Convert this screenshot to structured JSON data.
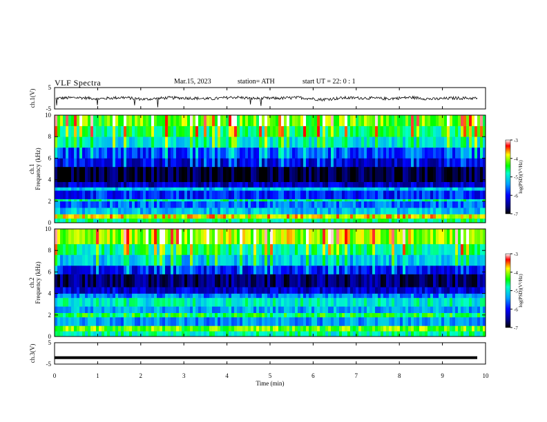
{
  "header": {
    "title": "VLF  Spectra",
    "date": "Mar.15, 2023",
    "station": "station= ATH",
    "start_ut": "start  UT  =   22: 0  : 1"
  },
  "chart_data": [
    {
      "type": "line",
      "panel": "ch1-waveform",
      "ylabel": "ch.1(V)",
      "ylim": [
        -5,
        5
      ],
      "y_ticks": [
        "5",
        "-5"
      ],
      "x_range": [
        0,
        10
      ],
      "series": [
        {
          "values": [
            0.0,
            0.3,
            -0.2,
            0.4,
            -0.5,
            0.2,
            0.1,
            -0.3,
            0.5,
            -0.1,
            0.0,
            0.3,
            -0.6,
            0.2,
            0.1,
            -0.2,
            0.4,
            -0.4,
            0.1,
            0.0
          ]
        }
      ]
    },
    {
      "type": "heatmap",
      "panel": "ch1-spectrogram",
      "ylabel": "ch.1\nFrequency  (kHz)",
      "y_ticks": [
        "0",
        "2",
        "4",
        "6",
        "8",
        "10"
      ],
      "ylim": [
        0,
        10
      ],
      "x_range": [
        0,
        10
      ],
      "colorbar": {
        "label": "log(PSD)(V²/Hz)",
        "ticks": [
          "-3",
          "-4",
          "-5",
          "-6",
          "-7"
        ],
        "range": [
          -7,
          -3
        ]
      },
      "bands_khz_logpsd": [
        [
          0.0,
          0.4,
          -4.6
        ],
        [
          0.4,
          0.8,
          -3.8
        ],
        [
          0.8,
          1.4,
          -5.2
        ],
        [
          1.4,
          2.0,
          -5.6
        ],
        [
          2.0,
          2.2,
          -4.8
        ],
        [
          2.2,
          3.0,
          -5.9
        ],
        [
          3.0,
          3.3,
          -5.2
        ],
        [
          3.3,
          3.8,
          -6.3
        ],
        [
          3.8,
          5.2,
          -6.8
        ],
        [
          5.2,
          6.0,
          -6.2
        ],
        [
          6.0,
          7.0,
          -5.8
        ],
        [
          7.0,
          8.0,
          -5.0
        ],
        [
          8.0,
          9.0,
          -4.6
        ],
        [
          9.0,
          10.0,
          -4.2
        ]
      ]
    },
    {
      "type": "heatmap",
      "panel": "ch2-spectrogram",
      "ylabel": "ch.2\nFrequency  (kHz)",
      "y_ticks": [
        "0",
        "2",
        "4",
        "6",
        "8",
        "10"
      ],
      "ylim": [
        0,
        10
      ],
      "x_range": [
        0,
        10
      ],
      "colorbar": {
        "label": "log(PSD)(V²/Hz)",
        "ticks": [
          "-3",
          "-4",
          "-5",
          "-6",
          "-7"
        ],
        "range": [
          -7,
          -3
        ]
      },
      "bands_khz_logpsd": [
        [
          0.0,
          0.5,
          -4.8
        ],
        [
          0.5,
          1.0,
          -4.2
        ],
        [
          1.0,
          1.8,
          -5.4
        ],
        [
          1.8,
          2.2,
          -4.5
        ],
        [
          2.2,
          2.8,
          -5.3
        ],
        [
          2.8,
          3.6,
          -4.9
        ],
        [
          3.6,
          4.0,
          -5.5
        ],
        [
          4.0,
          4.6,
          -6.2
        ],
        [
          4.6,
          5.8,
          -6.6
        ],
        [
          5.8,
          6.6,
          -6.0
        ],
        [
          6.6,
          7.6,
          -5.2
        ],
        [
          7.6,
          8.6,
          -4.7
        ],
        [
          8.6,
          10.0,
          -4.0
        ]
      ]
    },
    {
      "type": "line",
      "panel": "ch3-waveform",
      "ylabel": "ch.3(V)",
      "ylim": [
        -5,
        5
      ],
      "y_ticks": [
        "5",
        "-5"
      ],
      "x_range": [
        0,
        10
      ],
      "series": [
        {
          "values": [
            -2.0,
            -2.0
          ]
        }
      ]
    }
  ],
  "x_axis": {
    "label": "Time  (min)",
    "ticks": [
      "0",
      "1",
      "2",
      "3",
      "4",
      "5",
      "6",
      "7",
      "8",
      "9",
      "10"
    ],
    "range": [
      0,
      10
    ]
  },
  "colors": {
    "deep": "#000000",
    "navy": "#000080",
    "blue": "#0000ff",
    "cyan": "#00c8ff",
    "green": "#00ff00",
    "yellow": "#ffff00",
    "red": "#ff0000",
    "white": "#ffffff"
  }
}
